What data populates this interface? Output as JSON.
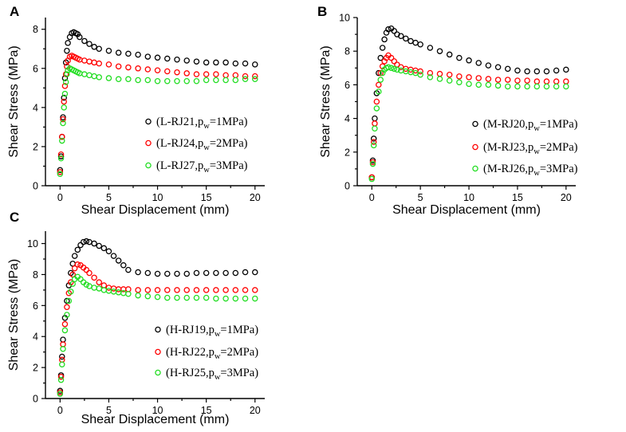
{
  "chart_data": [
    {
      "type": "scatter",
      "panel": "A",
      "xlabel": "Shear Displacement (mm)",
      "ylabel": "Shear Stress (MPa)",
      "xlim": [
        -1.5,
        21
      ],
      "ylim": [
        0,
        8.6
      ],
      "xticks": [
        0,
        5,
        10,
        15,
        20
      ],
      "yticks": [
        0,
        2,
        4,
        6,
        8
      ],
      "series": [
        {
          "name": "L-RJ21",
          "legend_prefix": "(L-RJ21,p",
          "legend_sub": "w",
          "legend_suffix": "=1MPa)",
          "color": "#000000",
          "x": [
            0,
            0.1,
            0.2,
            0.3,
            0.4,
            0.5,
            0.6,
            0.7,
            0.8,
            1.0,
            1.2,
            1.4,
            1.6,
            1.8,
            2.0,
            2.5,
            3,
            3.5,
            4,
            5,
            6,
            7,
            8,
            9,
            10,
            11,
            12,
            13,
            14,
            15,
            16,
            17,
            18,
            19,
            20
          ],
          "y": [
            0.8,
            1.5,
            2.5,
            3.5,
            4.5,
            5.5,
            6.3,
            6.9,
            7.3,
            7.6,
            7.8,
            7.85,
            7.8,
            7.75,
            7.6,
            7.4,
            7.25,
            7.1,
            7.0,
            6.9,
            6.8,
            6.75,
            6.7,
            6.6,
            6.55,
            6.5,
            6.45,
            6.4,
            6.35,
            6.3,
            6.3,
            6.3,
            6.25,
            6.25,
            6.2
          ]
        },
        {
          "name": "L-RJ24",
          "legend_prefix": "(L-RJ24,p",
          "legend_sub": "w",
          "legend_suffix": "=2MPa)",
          "color": "#ff0000",
          "x": [
            0,
            0.1,
            0.2,
            0.3,
            0.4,
            0.5,
            0.6,
            0.7,
            0.8,
            1.0,
            1.2,
            1.4,
            1.6,
            1.8,
            2.0,
            2.5,
            3,
            3.5,
            4,
            5,
            6,
            7,
            8,
            9,
            10,
            11,
            12,
            13,
            14,
            15,
            16,
            17,
            18,
            19,
            20
          ],
          "y": [
            0.7,
            1.6,
            2.5,
            3.4,
            4.3,
            5.1,
            5.7,
            6.1,
            6.4,
            6.6,
            6.65,
            6.6,
            6.55,
            6.5,
            6.45,
            6.4,
            6.35,
            6.3,
            6.25,
            6.2,
            6.1,
            6.05,
            6.0,
            5.95,
            5.9,
            5.85,
            5.8,
            5.75,
            5.7,
            5.7,
            5.7,
            5.65,
            5.65,
            5.6,
            5.6
          ]
        },
        {
          "name": "L-RJ27",
          "legend_prefix": "(L-RJ27,p",
          "legend_sub": "w",
          "legend_suffix": "=3MPa)",
          "color": "#22dd22",
          "x": [
            0,
            0.1,
            0.2,
            0.3,
            0.4,
            0.5,
            0.6,
            0.7,
            0.8,
            1.0,
            1.2,
            1.4,
            1.6,
            1.8,
            2.0,
            2.5,
            3,
            3.5,
            4,
            5,
            6,
            7,
            8,
            9,
            10,
            11,
            12,
            13,
            14,
            15,
            16,
            17,
            18,
            19,
            20
          ],
          "y": [
            0.6,
            1.4,
            2.3,
            3.2,
            4.0,
            4.7,
            5.3,
            5.7,
            5.9,
            6.0,
            5.95,
            5.9,
            5.85,
            5.8,
            5.75,
            5.7,
            5.65,
            5.6,
            5.55,
            5.5,
            5.45,
            5.45,
            5.4,
            5.4,
            5.35,
            5.35,
            5.35,
            5.35,
            5.35,
            5.4,
            5.4,
            5.4,
            5.4,
            5.45,
            5.45
          ]
        }
      ]
    },
    {
      "type": "scatter",
      "panel": "B",
      "xlabel": "Shear Displacement (mm)",
      "ylabel": "Shear Stress (MPa)",
      "xlim": [
        -1.5,
        21
      ],
      "ylim": [
        0,
        10
      ],
      "xticks": [
        0,
        5,
        10,
        15,
        20
      ],
      "yticks": [
        0,
        2,
        4,
        6,
        8,
        10
      ],
      "series": [
        {
          "name": "M-RJ20",
          "legend_prefix": "(M-RJ20,p",
          "legend_sub": "w",
          "legend_suffix": "=1MPa)",
          "color": "#000000",
          "x": [
            0,
            0.1,
            0.2,
            0.3,
            0.5,
            0.7,
            0.9,
            1.1,
            1.3,
            1.5,
            1.7,
            2.0,
            2.3,
            2.6,
            3,
            3.5,
            4,
            4.5,
            5,
            6,
            7,
            8,
            9,
            10,
            11,
            12,
            13,
            14,
            15,
            16,
            17,
            18,
            19,
            20
          ],
          "y": [
            0.5,
            1.5,
            2.8,
            4.0,
            5.5,
            6.7,
            7.6,
            8.2,
            8.7,
            9.1,
            9.3,
            9.35,
            9.2,
            9.0,
            8.9,
            8.75,
            8.6,
            8.5,
            8.4,
            8.2,
            8.0,
            7.8,
            7.6,
            7.45,
            7.3,
            7.15,
            7.05,
            6.95,
            6.85,
            6.8,
            6.8,
            6.8,
            6.85,
            6.9
          ]
        },
        {
          "name": "M-RJ23",
          "legend_prefix": "(M-RJ23,p",
          "legend_sub": "w",
          "legend_suffix": "=2MPa)",
          "color": "#ff0000",
          "x": [
            0,
            0.1,
            0.2,
            0.3,
            0.5,
            0.7,
            0.9,
            1.1,
            1.3,
            1.5,
            1.7,
            2.0,
            2.3,
            2.6,
            3,
            3.5,
            4,
            4.5,
            5,
            6,
            7,
            8,
            9,
            10,
            11,
            12,
            13,
            14,
            15,
            16,
            17,
            18,
            19,
            20
          ],
          "y": [
            0.5,
            1.4,
            2.6,
            3.7,
            5.0,
            6.0,
            6.7,
            7.1,
            7.4,
            7.6,
            7.75,
            7.6,
            7.4,
            7.2,
            7.05,
            6.95,
            6.9,
            6.85,
            6.8,
            6.7,
            6.65,
            6.6,
            6.5,
            6.45,
            6.4,
            6.35,
            6.3,
            6.3,
            6.25,
            6.25,
            6.2,
            6.2,
            6.2,
            6.2
          ]
        },
        {
          "name": "M-RJ26",
          "legend_prefix": "(M-RJ26,p",
          "legend_sub": "w",
          "legend_suffix": "=3MPa)",
          "color": "#22dd22",
          "x": [
            0,
            0.1,
            0.2,
            0.3,
            0.5,
            0.7,
            0.9,
            1.1,
            1.3,
            1.5,
            1.7,
            2.0,
            2.3,
            2.6,
            3,
            3.5,
            4,
            4.5,
            5,
            6,
            7,
            8,
            9,
            10,
            11,
            12,
            13,
            14,
            15,
            16,
            17,
            18,
            19,
            20
          ],
          "y": [
            0.4,
            1.3,
            2.4,
            3.4,
            4.6,
            5.6,
            6.3,
            6.7,
            6.9,
            7.0,
            7.05,
            7.0,
            6.95,
            6.9,
            6.85,
            6.8,
            6.75,
            6.7,
            6.6,
            6.45,
            6.35,
            6.25,
            6.15,
            6.05,
            6.0,
            6.0,
            5.95,
            5.9,
            5.9,
            5.9,
            5.9,
            5.9,
            5.9,
            5.9
          ]
        }
      ]
    },
    {
      "type": "scatter",
      "panel": "C",
      "xlabel": "Shear Displacement (mm)",
      "ylabel": "Shear Stress (MPa)",
      "xlim": [
        -1.5,
        21
      ],
      "ylim": [
        0,
        10.8
      ],
      "xticks": [
        0,
        5,
        10,
        15,
        20
      ],
      "yticks": [
        0,
        2,
        4,
        6,
        8,
        10
      ],
      "series": [
        {
          "name": "H-RJ19",
          "legend_prefix": "(H-RJ19,p",
          "legend_sub": "w",
          "legend_suffix": "=1MPa)",
          "color": "#000000",
          "x": [
            0,
            0.1,
            0.2,
            0.3,
            0.5,
            0.7,
            0.9,
            1.1,
            1.3,
            1.5,
            1.8,
            2.1,
            2.4,
            2.7,
            3,
            3.5,
            4,
            4.5,
            5,
            5.5,
            6,
            6.5,
            7,
            8,
            9,
            10,
            11,
            12,
            13,
            14,
            15,
            16,
            17,
            18,
            19,
            20
          ],
          "y": [
            0.5,
            1.5,
            2.7,
            3.8,
            5.2,
            6.3,
            7.3,
            8.1,
            8.7,
            9.2,
            9.6,
            9.9,
            10.1,
            10.15,
            10.1,
            10.0,
            9.85,
            9.7,
            9.5,
            9.2,
            8.9,
            8.6,
            8.3,
            8.15,
            8.1,
            8.05,
            8.05,
            8.05,
            8.05,
            8.1,
            8.1,
            8.1,
            8.1,
            8.1,
            8.15,
            8.15
          ]
        },
        {
          "name": "H-RJ22",
          "legend_prefix": "(H-RJ22,p",
          "legend_sub": "w",
          "legend_suffix": "=2MPa)",
          "color": "#ff0000",
          "x": [
            0,
            0.1,
            0.2,
            0.3,
            0.5,
            0.7,
            0.9,
            1.1,
            1.3,
            1.5,
            1.8,
            2.1,
            2.4,
            2.7,
            3,
            3.5,
            4,
            4.5,
            5,
            5.5,
            6,
            6.5,
            7,
            8,
            9,
            10,
            11,
            12,
            13,
            14,
            15,
            16,
            17,
            18,
            19,
            20
          ],
          "y": [
            0.4,
            1.4,
            2.5,
            3.5,
            4.8,
            5.9,
            6.8,
            7.5,
            8.0,
            8.4,
            8.65,
            8.6,
            8.45,
            8.3,
            8.1,
            7.8,
            7.5,
            7.3,
            7.15,
            7.1,
            7.05,
            7.05,
            7.05,
            7.0,
            7.0,
            7.0,
            7.0,
            7.0,
            7.0,
            7.0,
            7.0,
            7.0,
            7.0,
            7.0,
            7.0,
            7.0
          ]
        },
        {
          "name": "H-RJ25",
          "legend_prefix": "(H-RJ25,p",
          "legend_sub": "w",
          "legend_suffix": "=3MPa)",
          "color": "#22dd22",
          "x": [
            0,
            0.1,
            0.2,
            0.3,
            0.5,
            0.7,
            0.9,
            1.1,
            1.3,
            1.5,
            1.8,
            2.1,
            2.4,
            2.7,
            3,
            3.5,
            4,
            4.5,
            5,
            5.5,
            6,
            6.5,
            7,
            8,
            9,
            10,
            11,
            12,
            13,
            14,
            15,
            16,
            17,
            18,
            19,
            20
          ],
          "y": [
            0.3,
            1.2,
            2.2,
            3.2,
            4.4,
            5.4,
            6.3,
            6.9,
            7.4,
            7.7,
            7.85,
            7.7,
            7.5,
            7.35,
            7.25,
            7.15,
            7.1,
            7.0,
            6.95,
            6.9,
            6.85,
            6.8,
            6.75,
            6.65,
            6.6,
            6.55,
            6.5,
            6.5,
            6.5,
            6.5,
            6.5,
            6.45,
            6.45,
            6.45,
            6.45,
            6.45
          ]
        }
      ]
    }
  ]
}
